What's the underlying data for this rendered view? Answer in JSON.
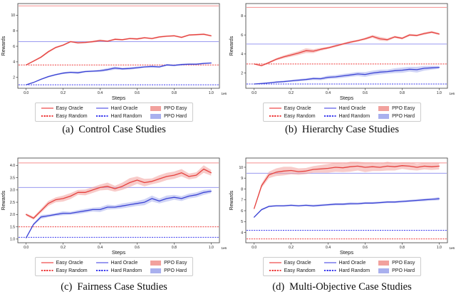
{
  "figure": {
    "ylabel": "Rewards",
    "xlabel": "Steps",
    "x_offset_label": "1e6",
    "xtick_labels": [
      "0.0",
      "0.2",
      "0.4",
      "0.6",
      "0.8",
      "1.0"
    ]
  },
  "legend": {
    "items": [
      {
        "label": "Easy Oracle",
        "swatch": "line-solid",
        "color": "#f58f8f"
      },
      {
        "label": "Easy Random",
        "swatch": "line-dashed",
        "color": "#ee3b3b"
      },
      {
        "label": "Hard Oracle",
        "swatch": "line-solid",
        "color": "#9a9af0"
      },
      {
        "label": "Hard Random",
        "swatch": "line-dashed",
        "color": "#3a3aee"
      },
      {
        "label": "PPO Easy",
        "swatch": "patch",
        "color": "#f2a19d"
      },
      {
        "label": "PPO Hard",
        "swatch": "patch",
        "color": "#a9b0ee"
      }
    ]
  },
  "chart_data": [
    {
      "id": "a",
      "type": "line",
      "caption": {
        "tag": "(a)",
        "title": "Control Case Studies"
      },
      "xlabel": "Steps",
      "ylabel": "Rewards",
      "xlim": [
        -0.045,
        1.045
      ],
      "ylim": [
        0.6,
        11.5
      ],
      "yticks": [
        2,
        4,
        6,
        8,
        10
      ],
      "ytick_labels": [
        "2",
        "4",
        "6",
        "8",
        "10"
      ],
      "xticks": [
        0,
        0.2,
        0.4,
        0.6,
        0.8,
        1.0
      ],
      "xtick_labels": [
        "0.0",
        "0.2",
        "0.4",
        "0.6",
        "0.8",
        "1.0"
      ],
      "hlines": [
        {
          "name": "Easy Oracle",
          "value": 11.2,
          "style": "solid",
          "color": "#f58f8f"
        },
        {
          "name": "Hard Oracle",
          "value": 6.6,
          "style": "solid",
          "color": "#9a9af0"
        },
        {
          "name": "Easy Random",
          "value": 3.6,
          "style": "dashed",
          "color": "#ee3b3b"
        },
        {
          "name": "Hard Random",
          "value": 1.05,
          "style": "dashed",
          "color": "#3a3aee"
        }
      ],
      "series": [
        {
          "name": "PPO Easy",
          "color": "#e5413e",
          "fill": "#f2a19d",
          "x": [
            0,
            0.04,
            0.08,
            0.12,
            0.16,
            0.2,
            0.24,
            0.28,
            0.32,
            0.36,
            0.4,
            0.44,
            0.48,
            0.52,
            0.56,
            0.6,
            0.64,
            0.68,
            0.72,
            0.76,
            0.8,
            0.84,
            0.88,
            0.92,
            0.96,
            1.0
          ],
          "y": [
            3.6,
            4.1,
            4.6,
            5.3,
            5.85,
            6.15,
            6.6,
            6.45,
            6.5,
            6.6,
            6.75,
            6.65,
            6.9,
            6.85,
            7.0,
            6.95,
            7.1,
            7.0,
            7.2,
            7.3,
            7.35,
            7.15,
            7.45,
            7.5,
            7.55,
            7.35
          ],
          "band": [
            0.06,
            0.1,
            0.12,
            0.14,
            0.12,
            0.1,
            0.1,
            0.12,
            0.1,
            0.14,
            0.12,
            0.1,
            0.12,
            0.1,
            0.1,
            0.12,
            0.1,
            0.1,
            0.12,
            0.1,
            0.1,
            0.12,
            0.1,
            0.1,
            0.12,
            0.1
          ]
        },
        {
          "name": "PPO Hard",
          "color": "#3b43d4",
          "fill": "#a9b0ee",
          "x": [
            0,
            0.04,
            0.08,
            0.12,
            0.16,
            0.2,
            0.24,
            0.28,
            0.32,
            0.36,
            0.4,
            0.44,
            0.48,
            0.52,
            0.56,
            0.6,
            0.64,
            0.68,
            0.72,
            0.76,
            0.8,
            0.84,
            0.88,
            0.92,
            0.96,
            1.0
          ],
          "y": [
            1.05,
            1.35,
            1.75,
            2.1,
            2.35,
            2.55,
            2.65,
            2.6,
            2.75,
            2.8,
            2.85,
            3.0,
            3.2,
            3.1,
            3.15,
            3.25,
            3.35,
            3.4,
            3.35,
            3.6,
            3.55,
            3.65,
            3.7,
            3.7,
            3.8,
            3.85
          ],
          "band": [
            0.04,
            0.06,
            0.08,
            0.1,
            0.1,
            0.12,
            0.12,
            0.14,
            0.12,
            0.12,
            0.15,
            0.18,
            0.2,
            0.15,
            0.15,
            0.15,
            0.12,
            0.15,
            0.12,
            0.12,
            0.1,
            0.12,
            0.1,
            0.1,
            0.1,
            0.08
          ]
        }
      ]
    },
    {
      "id": "b",
      "type": "line",
      "caption": {
        "tag": "(b)",
        "title": "Hierarchy Case Studies"
      },
      "xlabel": "Steps",
      "ylabel": "Rewards",
      "xlim": [
        -0.045,
        1.045
      ],
      "ylim": [
        0.4,
        9.3
      ],
      "yticks": [
        2,
        4,
        6,
        8
      ],
      "ytick_labels": [
        "2",
        "4",
        "6",
        "8"
      ],
      "xticks": [
        0,
        0.2,
        0.4,
        0.6,
        0.8,
        1.0
      ],
      "xtick_labels": [
        "0.0",
        "0.2",
        "0.4",
        "0.6",
        "0.8",
        "1.0"
      ],
      "hlines": [
        {
          "name": "Easy Oracle",
          "value": 8.9,
          "style": "solid",
          "color": "#f58f8f"
        },
        {
          "name": "Hard Oracle",
          "value": 5.05,
          "style": "solid",
          "color": "#9a9af0"
        },
        {
          "name": "Easy Random",
          "value": 2.95,
          "style": "dashed",
          "color": "#ee3b3b"
        },
        {
          "name": "Hard Random",
          "value": 0.85,
          "style": "dashed",
          "color": "#3a3aee"
        }
      ],
      "series": [
        {
          "name": "PPO Easy",
          "color": "#e5413e",
          "fill": "#f2a19d",
          "x": [
            0,
            0.04,
            0.08,
            0.12,
            0.16,
            0.2,
            0.24,
            0.28,
            0.32,
            0.36,
            0.4,
            0.44,
            0.48,
            0.52,
            0.56,
            0.6,
            0.64,
            0.68,
            0.72,
            0.76,
            0.8,
            0.84,
            0.88,
            0.92,
            0.96,
            1.0
          ],
          "y": [
            2.95,
            2.78,
            3.1,
            3.45,
            3.7,
            3.9,
            4.1,
            4.35,
            4.3,
            4.5,
            4.65,
            4.85,
            5.05,
            5.25,
            5.4,
            5.6,
            5.85,
            5.6,
            5.5,
            5.8,
            5.65,
            6.0,
            5.95,
            6.15,
            6.3,
            6.1
          ],
          "band": [
            0.05,
            0.08,
            0.1,
            0.12,
            0.15,
            0.18,
            0.2,
            0.25,
            0.2,
            0.15,
            0.12,
            0.12,
            0.1,
            0.12,
            0.1,
            0.12,
            0.15,
            0.2,
            0.15,
            0.12,
            0.12,
            0.12,
            0.1,
            0.12,
            0.12,
            0.1
          ]
        },
        {
          "name": "PPO Hard",
          "color": "#3b43d4",
          "fill": "#a9b0ee",
          "x": [
            0,
            0.04,
            0.08,
            0.12,
            0.16,
            0.2,
            0.24,
            0.28,
            0.32,
            0.36,
            0.4,
            0.44,
            0.48,
            0.52,
            0.56,
            0.6,
            0.64,
            0.68,
            0.72,
            0.76,
            0.8,
            0.84,
            0.88,
            0.92,
            0.96,
            1.0
          ],
          "y": [
            0.85,
            0.9,
            0.97,
            1.05,
            1.1,
            1.18,
            1.25,
            1.32,
            1.42,
            1.4,
            1.55,
            1.6,
            1.7,
            1.8,
            1.9,
            1.85,
            2.0,
            2.1,
            2.15,
            2.25,
            2.3,
            2.4,
            2.35,
            2.5,
            2.55,
            2.6
          ],
          "band": [
            0.03,
            0.05,
            0.06,
            0.08,
            0.1,
            0.1,
            0.12,
            0.12,
            0.15,
            0.15,
            0.18,
            0.18,
            0.2,
            0.2,
            0.22,
            0.25,
            0.25,
            0.25,
            0.22,
            0.25,
            0.28,
            0.25,
            0.3,
            0.25,
            0.2,
            0.15
          ]
        }
      ]
    },
    {
      "id": "c",
      "type": "line",
      "caption": {
        "tag": "(c)",
        "title": "Fairness Case Studies"
      },
      "xlabel": "Steps",
      "ylabel": "Rewards",
      "xlim": [
        -0.045,
        1.045
      ],
      "ylim": [
        0.85,
        4.3
      ],
      "yticks": [
        1.0,
        1.5,
        2.0,
        2.5,
        3.0,
        3.5,
        4.0
      ],
      "ytick_labels": [
        "1.0",
        "1.5",
        "2.0",
        "2.5",
        "3.0",
        "3.5",
        "4.0"
      ],
      "xticks": [
        0,
        0.2,
        0.4,
        0.6,
        0.8,
        1.0
      ],
      "xtick_labels": [
        "0.0",
        "0.2",
        "0.4",
        "0.6",
        "0.8",
        "1.0"
      ],
      "hlines": [
        {
          "name": "Easy Oracle",
          "value": 4.1,
          "style": "solid",
          "color": "#f58f8f"
        },
        {
          "name": "Hard Oracle",
          "value": 3.1,
          "style": "solid",
          "color": "#9a9af0"
        },
        {
          "name": "Easy Random",
          "value": 1.5,
          "style": "dashed",
          "color": "#ee3b3b"
        },
        {
          "name": "Hard Random",
          "value": 1.07,
          "style": "dashed",
          "color": "#3a3aee"
        }
      ],
      "series": [
        {
          "name": "PPO Easy",
          "color": "#e5413e",
          "fill": "#f2a19d",
          "x": [
            0,
            0.04,
            0.08,
            0.12,
            0.16,
            0.2,
            0.24,
            0.28,
            0.32,
            0.36,
            0.4,
            0.44,
            0.48,
            0.52,
            0.56,
            0.6,
            0.64,
            0.68,
            0.72,
            0.76,
            0.8,
            0.84,
            0.88,
            0.92,
            0.96,
            1.0
          ],
          "y": [
            2.0,
            1.85,
            2.15,
            2.45,
            2.6,
            2.65,
            2.75,
            2.9,
            2.9,
            3.0,
            3.1,
            3.15,
            3.05,
            3.15,
            3.3,
            3.4,
            3.3,
            3.35,
            3.45,
            3.55,
            3.6,
            3.7,
            3.55,
            3.6,
            3.85,
            3.7
          ],
          "band": [
            0.05,
            0.06,
            0.08,
            0.1,
            0.1,
            0.12,
            0.12,
            0.1,
            0.12,
            0.12,
            0.12,
            0.15,
            0.12,
            0.15,
            0.18,
            0.15,
            0.15,
            0.12,
            0.15,
            0.15,
            0.15,
            0.15,
            0.12,
            0.12,
            0.15,
            0.12
          ]
        },
        {
          "name": "PPO Hard",
          "color": "#3b43d4",
          "fill": "#a9b0ee",
          "x": [
            0,
            0.04,
            0.08,
            0.12,
            0.16,
            0.2,
            0.24,
            0.28,
            0.32,
            0.36,
            0.4,
            0.44,
            0.48,
            0.52,
            0.56,
            0.6,
            0.64,
            0.68,
            0.72,
            0.76,
            0.8,
            0.84,
            0.88,
            0.92,
            0.96,
            1.0
          ],
          "y": [
            1.05,
            1.6,
            1.9,
            1.95,
            2.0,
            2.05,
            2.05,
            2.1,
            2.15,
            2.2,
            2.2,
            2.3,
            2.3,
            2.35,
            2.4,
            2.45,
            2.5,
            2.65,
            2.55,
            2.65,
            2.7,
            2.65,
            2.75,
            2.8,
            2.9,
            2.95
          ],
          "band": [
            0.03,
            0.05,
            0.08,
            0.06,
            0.06,
            0.08,
            0.06,
            0.08,
            0.08,
            0.08,
            0.1,
            0.1,
            0.08,
            0.1,
            0.1,
            0.1,
            0.12,
            0.12,
            0.1,
            0.12,
            0.1,
            0.1,
            0.1,
            0.1,
            0.1,
            0.08
          ]
        }
      ]
    },
    {
      "id": "d",
      "type": "line",
      "caption": {
        "tag": "(d)",
        "title": "Multi-Objective Case Studies"
      },
      "xlabel": "Steps",
      "ylabel": "Rewards",
      "xlim": [
        -0.045,
        1.045
      ],
      "ylim": [
        3.05,
        10.85
      ],
      "yticks": [
        4,
        5,
        6,
        7,
        8,
        9,
        10
      ],
      "ytick_labels": [
        "4",
        "5",
        "6",
        "7",
        "8",
        "9",
        "10"
      ],
      "xticks": [
        0,
        0.2,
        0.4,
        0.6,
        0.8,
        1.0
      ],
      "xtick_labels": [
        "0.0",
        "0.2",
        "0.4",
        "0.6",
        "0.8",
        "1.0"
      ],
      "hlines": [
        {
          "name": "Easy Oracle",
          "value": 10.4,
          "style": "solid",
          "color": "#f58f8f"
        },
        {
          "name": "Hard Oracle",
          "value": 9.45,
          "style": "solid",
          "color": "#9a9af0"
        },
        {
          "name": "Hard Random",
          "value": 4.2,
          "style": "dashed",
          "color": "#3a3aee"
        },
        {
          "name": "Easy Random",
          "value": 3.4,
          "style": "dashed",
          "color": "#ee3b3b"
        }
      ],
      "series": [
        {
          "name": "PPO Easy",
          "color": "#e5413e",
          "fill": "#f2a19d",
          "x": [
            0,
            0.04,
            0.08,
            0.12,
            0.16,
            0.2,
            0.24,
            0.28,
            0.32,
            0.36,
            0.4,
            0.44,
            0.48,
            0.52,
            0.56,
            0.6,
            0.64,
            0.68,
            0.72,
            0.76,
            0.8,
            0.84,
            0.88,
            0.92,
            0.96,
            1.0
          ],
          "y": [
            6.2,
            8.3,
            9.3,
            9.55,
            9.65,
            9.7,
            9.6,
            9.65,
            9.8,
            9.85,
            9.9,
            10.0,
            9.95,
            10.05,
            10.1,
            10.0,
            10.05,
            10.0,
            10.1,
            10.05,
            10.15,
            10.1,
            10.0,
            10.1,
            10.05,
            10.1
          ],
          "band": [
            0.1,
            0.2,
            0.3,
            0.35,
            0.4,
            0.35,
            0.3,
            0.28,
            0.3,
            0.35,
            0.4,
            0.42,
            0.4,
            0.45,
            0.4,
            0.45,
            0.4,
            0.35,
            0.4,
            0.35,
            0.3,
            0.35,
            0.3,
            0.3,
            0.3,
            0.3
          ]
        },
        {
          "name": "PPO Hard",
          "color": "#3b43d4",
          "fill": "#a9b0ee",
          "x": [
            0,
            0.04,
            0.08,
            0.12,
            0.16,
            0.2,
            0.24,
            0.28,
            0.32,
            0.36,
            0.4,
            0.44,
            0.48,
            0.52,
            0.56,
            0.6,
            0.64,
            0.68,
            0.72,
            0.76,
            0.8,
            0.84,
            0.88,
            0.92,
            0.96,
            1.0
          ],
          "y": [
            5.4,
            6.1,
            6.4,
            6.45,
            6.45,
            6.5,
            6.45,
            6.5,
            6.45,
            6.5,
            6.55,
            6.6,
            6.6,
            6.65,
            6.65,
            6.7,
            6.7,
            6.75,
            6.8,
            6.8,
            6.85,
            6.9,
            6.95,
            7.0,
            7.05,
            7.1
          ],
          "band": [
            0.05,
            0.08,
            0.08,
            0.08,
            0.08,
            0.08,
            0.08,
            0.08,
            0.1,
            0.1,
            0.1,
            0.1,
            0.1,
            0.12,
            0.1,
            0.1,
            0.1,
            0.1,
            0.1,
            0.1,
            0.1,
            0.1,
            0.12,
            0.12,
            0.12,
            0.15
          ]
        }
      ]
    }
  ]
}
